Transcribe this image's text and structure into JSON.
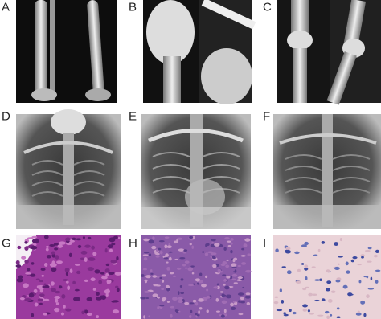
{
  "panels": [
    {
      "label": "A"
    },
    {
      "label": "B"
    },
    {
      "label": "C"
    },
    {
      "label": "D"
    },
    {
      "label": "E"
    },
    {
      "label": "F"
    },
    {
      "label": "G"
    },
    {
      "label": "H"
    },
    {
      "label": "I"
    }
  ]
}
